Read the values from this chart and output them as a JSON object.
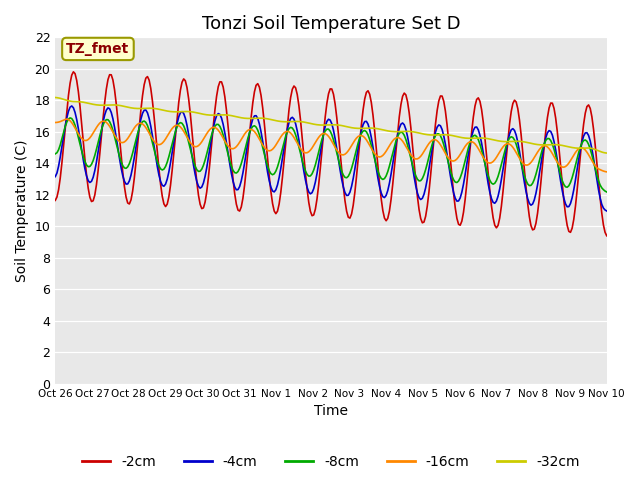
{
  "title": "Tonzi Soil Temperature Set D",
  "xlabel": "Time",
  "ylabel": "Soil Temperature (C)",
  "ylim": [
    0,
    22
  ],
  "yticks": [
    0,
    2,
    4,
    6,
    8,
    10,
    12,
    14,
    16,
    18,
    20,
    22
  ],
  "x_labels": [
    "Oct 26",
    "Oct 27",
    "Oct 28",
    "Oct 29",
    "Oct 30",
    "Oct 31",
    "Nov 1",
    "Nov 2",
    "Nov 3",
    "Nov 4",
    "Nov 5",
    "Nov 6",
    "Nov 7",
    "Nov 8",
    "Nov 9",
    "Nov 10"
  ],
  "annotation_text": "TZ_fmet",
  "annotation_color": "#8B0000",
  "annotation_bg": "#FFFFCC",
  "line_colors": [
    "#CC0000",
    "#0000CC",
    "#00AA00",
    "#FF8800",
    "#CCCC00"
  ],
  "line_labels": [
    "-2cm",
    "-4cm",
    "-8cm",
    "-16cm",
    "-32cm"
  ],
  "n_points": 336,
  "days": 15,
  "title_fontsize": 13,
  "axis_fontsize": 10,
  "legend_fontsize": 10
}
